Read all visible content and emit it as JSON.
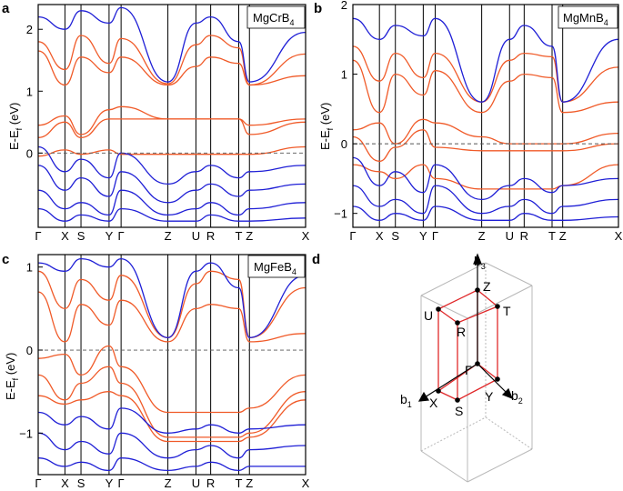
{
  "panel_letters": [
    "a",
    "b",
    "c",
    "d"
  ],
  "chart_data": [
    {
      "type": "line",
      "panel": "a",
      "legend": "MgCrB4",
      "legend_main": "MgCrB",
      "legend_sub": "4",
      "ylabel": "E-E_f (eV)",
      "ylabel_main": "E-E",
      "ylabel_sub": "f",
      "ylabel_tail": " (eV)",
      "ylim": [
        -1.2,
        2.4
      ],
      "yticks": [
        0,
        1,
        2
      ],
      "xtick_labels": [
        "Γ",
        "X",
        "S",
        "Y",
        "Γ",
        "Z",
        "U",
        "R",
        "T",
        "Z",
        "X"
      ],
      "fermi_level": 0,
      "colors": {
        "red": "#f05a28",
        "blue": "#1f1fd6"
      },
      "series": [
        {
          "color": "red",
          "values": [
            1.8,
            1.35,
            1.9,
            1.45,
            1.85,
            1.12,
            1.75,
            1.9,
            1.7,
            1.1,
            1.6
          ]
        },
        {
          "color": "red",
          "values": [
            1.65,
            1.1,
            1.55,
            1.3,
            1.55,
            1.1,
            1.4,
            1.55,
            1.45,
            1.1,
            1.25
          ]
        },
        {
          "color": "red",
          "values": [
            0.45,
            0.6,
            0.3,
            0.7,
            0.75,
            0.55,
            0.55,
            0.55,
            0.55,
            0.45,
            0.55
          ]
        },
        {
          "color": "red",
          "values": [
            0.25,
            0.5,
            0.25,
            0.55,
            0.55,
            0.55,
            0.55,
            0.55,
            0.55,
            0.3,
            0.5
          ]
        },
        {
          "color": "red",
          "values": [
            -0.05,
            0.05,
            -0.02,
            0.05,
            -0.02,
            -0.02,
            -0.02,
            -0.02,
            -0.02,
            -0.02,
            0.1
          ]
        },
        {
          "color": "blue",
          "values": [
            2.2,
            2.0,
            2.3,
            2.1,
            2.35,
            1.15,
            2.1,
            2.2,
            1.8,
            1.15,
            1.95
          ]
        },
        {
          "color": "blue",
          "values": [
            0.1,
            -0.3,
            -0.1,
            -0.4,
            0.0,
            -0.5,
            -0.3,
            -0.2,
            -0.4,
            -0.3,
            -0.2
          ]
        },
        {
          "color": "blue",
          "values": [
            -0.2,
            -0.6,
            -0.4,
            -0.7,
            -0.3,
            -0.8,
            -0.6,
            -0.5,
            -0.7,
            -0.6,
            -0.5
          ]
        },
        {
          "color": "blue",
          "values": [
            -0.6,
            -0.9,
            -0.8,
            -1.0,
            -0.6,
            -1.0,
            -0.9,
            -0.8,
            -1.0,
            -0.9,
            -0.8
          ]
        },
        {
          "color": "blue",
          "values": [
            -0.9,
            -1.1,
            -1.0,
            -1.1,
            -0.9,
            -1.1,
            -1.1,
            -1.0,
            -1.1,
            -1.1,
            -1.05
          ]
        }
      ]
    },
    {
      "type": "line",
      "panel": "b",
      "legend": "MgMnB4",
      "legend_main": "MgMnB",
      "legend_sub": "4",
      "ylabel": "E-E_f (eV)",
      "ylabel_main": "E-E",
      "ylabel_sub": "f",
      "ylabel_tail": " (eV)",
      "ylim": [
        -1.2,
        2.0
      ],
      "yticks": [
        -1,
        0,
        1,
        2
      ],
      "xtick_labels": [
        "Γ",
        "X",
        "S",
        "Y",
        "Γ",
        "Z",
        "U",
        "R",
        "T",
        "Z",
        "X"
      ],
      "fermi_level": 0,
      "colors": {
        "red": "#f05a28",
        "blue": "#1f1fd6"
      },
      "series": [
        {
          "color": "red",
          "values": [
            1.4,
            0.9,
            1.3,
            0.95,
            1.3,
            0.6,
            1.2,
            1.3,
            1.25,
            0.6,
            1.1
          ]
        },
        {
          "color": "red",
          "values": [
            1.2,
            0.45,
            1.0,
            0.7,
            1.05,
            0.45,
            0.9,
            1.0,
            0.95,
            0.45,
            0.6
          ]
        },
        {
          "color": "red",
          "values": [
            0.2,
            0.3,
            0.0,
            0.35,
            0.3,
            0.1,
            0.0,
            0.0,
            0.0,
            0.0,
            0.15
          ]
        },
        {
          "color": "red",
          "values": [
            0.1,
            -0.25,
            -0.05,
            0.2,
            -0.05,
            -0.1,
            -0.1,
            -0.1,
            -0.1,
            -0.1,
            0.0
          ]
        },
        {
          "color": "red",
          "values": [
            -0.3,
            -0.4,
            -0.5,
            -0.3,
            -0.5,
            -0.65,
            -0.65,
            -0.65,
            -0.65,
            -0.6,
            -0.3
          ]
        },
        {
          "color": "blue",
          "values": [
            1.8,
            1.5,
            1.7,
            1.55,
            1.8,
            0.6,
            1.5,
            1.7,
            1.4,
            0.6,
            1.5
          ]
        },
        {
          "color": "blue",
          "values": [
            -0.2,
            -0.6,
            -0.4,
            -0.7,
            -0.3,
            -0.8,
            -0.6,
            -0.5,
            -0.7,
            -0.6,
            -0.5
          ]
        },
        {
          "color": "blue",
          "values": [
            -0.6,
            -0.9,
            -0.8,
            -1.0,
            -0.6,
            -1.0,
            -0.9,
            -0.8,
            -1.0,
            -0.9,
            -0.8
          ]
        },
        {
          "color": "blue",
          "values": [
            -0.9,
            -1.1,
            -1.0,
            -1.1,
            -0.9,
            -1.1,
            -1.1,
            -1.0,
            -1.1,
            -1.1,
            -1.05
          ]
        }
      ]
    },
    {
      "type": "line",
      "panel": "c",
      "legend": "MgFeB4",
      "legend_main": "MgFeB",
      "legend_sub": "4",
      "ylabel": "E-E_f (eV)",
      "ylabel_main": "E-E",
      "ylabel_sub": "f",
      "ylabel_tail": " (eV)",
      "ylim": [
        -1.5,
        1.15
      ],
      "yticks": [
        -1,
        0,
        1
      ],
      "xtick_labels": [
        "Γ",
        "X",
        "S",
        "Y",
        "Γ",
        "Z",
        "U",
        "R",
        "T",
        "Z",
        "X"
      ],
      "fermi_level": 0,
      "colors": {
        "red": "#f05a28",
        "blue": "#1f1fd6"
      },
      "series": [
        {
          "color": "red",
          "values": [
            0.95,
            0.5,
            0.85,
            0.6,
            0.9,
            0.15,
            0.8,
            0.95,
            0.85,
            0.15,
            0.75
          ]
        },
        {
          "color": "red",
          "values": [
            0.7,
            0.1,
            0.55,
            0.3,
            0.6,
            0.1,
            0.5,
            0.55,
            0.5,
            0.1,
            0.2
          ]
        },
        {
          "color": "red",
          "values": [
            -0.1,
            -0.05,
            -0.3,
            0.05,
            -0.2,
            -0.75,
            -0.75,
            -0.75,
            -0.75,
            -0.7,
            -0.3
          ]
        },
        {
          "color": "red",
          "values": [
            -0.3,
            -0.6,
            -0.4,
            -0.2,
            -0.4,
            -1.05,
            -1.05,
            -1.05,
            -1.05,
            -1.0,
            -0.5
          ]
        },
        {
          "color": "red",
          "values": [
            -0.55,
            -0.65,
            -0.6,
            -0.5,
            -0.55,
            -1.1,
            -1.1,
            -1.1,
            -1.1,
            -1.05,
            -0.6
          ]
        },
        {
          "color": "blue",
          "values": [
            1.05,
            0.95,
            1.1,
            1.0,
            1.1,
            0.15,
            0.95,
            1.05,
            0.75,
            0.15,
            0.9
          ]
        },
        {
          "color": "blue",
          "values": [
            -0.75,
            -0.9,
            -0.8,
            -0.95,
            -0.7,
            -1.0,
            -0.95,
            -0.9,
            -1.0,
            -0.95,
            -0.9
          ]
        },
        {
          "color": "blue",
          "values": [
            -1.0,
            -1.2,
            -1.1,
            -1.25,
            -1.0,
            -1.3,
            -1.2,
            -1.15,
            -1.3,
            -1.2,
            -1.15
          ]
        },
        {
          "color": "blue",
          "values": [
            -1.3,
            -1.4,
            -1.35,
            -1.45,
            -1.3,
            -1.45,
            -1.4,
            -1.35,
            -1.45,
            -1.4,
            -1.4
          ]
        }
      ]
    }
  ],
  "bz": {
    "points": [
      "Z",
      "T",
      "U",
      "R",
      "Γ",
      "X",
      "S",
      "Y"
    ],
    "axes": [
      {
        "main": "b",
        "sub": "3"
      },
      {
        "main": "b",
        "sub": "1"
      },
      {
        "main": "b",
        "sub": "2"
      }
    ]
  }
}
